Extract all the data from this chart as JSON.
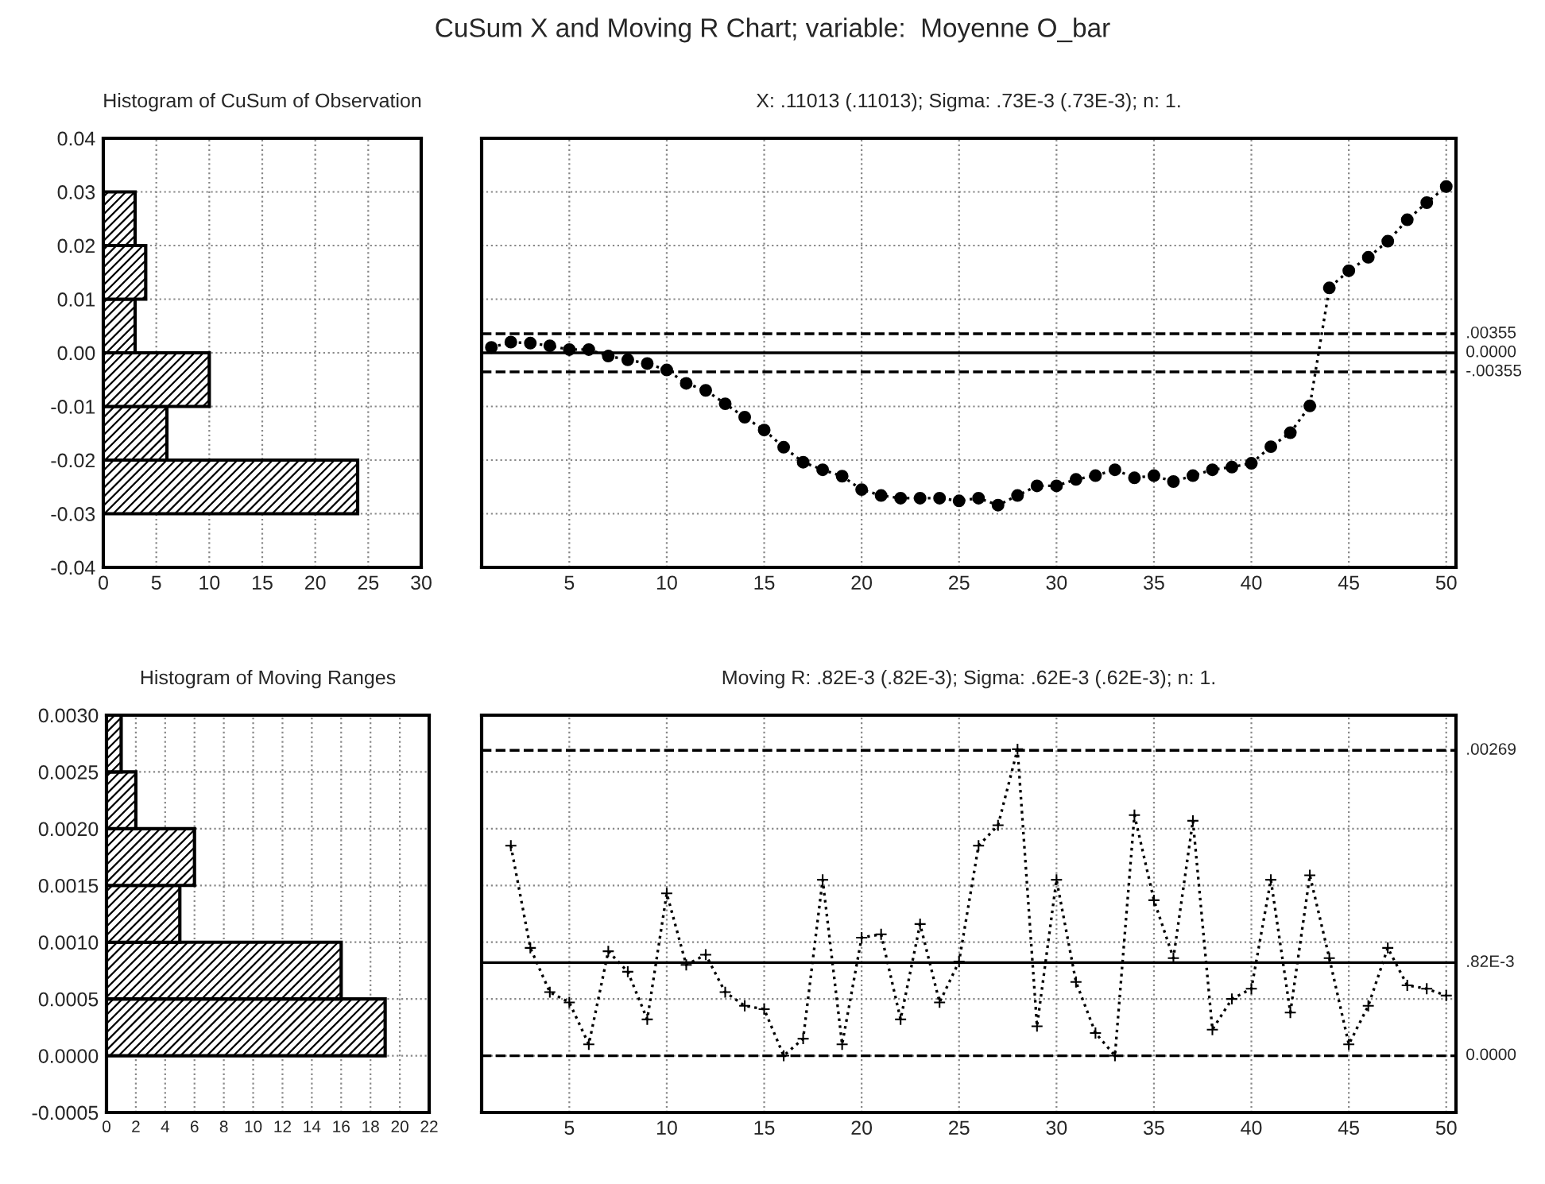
{
  "chart_data": [
    {
      "type": "histogram",
      "orientation": "horizontal",
      "title": "Histogram of CuSum of Observation",
      "annotations": [
        "CuSum X and Moving R Chart; variable:  Moyenne O_bar"
      ],
      "bins": [
        -0.03,
        -0.02,
        -0.01,
        0.0,
        0.01,
        0.02,
        0.03
      ],
      "values": [
        24,
        6,
        10,
        3,
        4,
        3
      ],
      "color": "#000000",
      "xlim": [
        0,
        30
      ],
      "xticks": [
        0,
        5,
        10,
        15,
        20,
        25,
        30
      ],
      "ylim": [
        -0.04,
        0.04
      ],
      "yticks": [
        {
          "value": -0.04,
          "label": "-0.04"
        },
        {
          "value": -0.03,
          "label": "-0.03"
        },
        {
          "value": -0.02,
          "label": "-0.02"
        },
        {
          "value": -0.01,
          "label": "-0.01"
        },
        {
          "value": 0.0,
          "label": "0.00"
        },
        {
          "value": 0.01,
          "label": "0.01"
        },
        {
          "value": 0.02,
          "label": "0.02"
        },
        {
          "value": 0.03,
          "label": "0.03"
        },
        {
          "value": 0.04,
          "label": "0.04"
        }
      ],
      "grid": true
    },
    {
      "type": "line",
      "title": "X: .11013 (.11013); Sigma: .73E-3 (.73E-3); n: 1.",
      "marker": "circle",
      "line_style": "dotted",
      "x": [
        1,
        2,
        3,
        4,
        5,
        6,
        7,
        8,
        9,
        10,
        11,
        12,
        13,
        14,
        15,
        16,
        17,
        18,
        19,
        20,
        21,
        22,
        23,
        24,
        25,
        26,
        27,
        28,
        29,
        30,
        31,
        32,
        33,
        34,
        35,
        36,
        37,
        38,
        39,
        40,
        41,
        42,
        43,
        44,
        45,
        46,
        47,
        48,
        49,
        50
      ],
      "series": [
        {
          "color": "#000000",
          "values": [
            0.001,
            0.002,
            0.0018,
            0.0013,
            0.0006,
            0.0006,
            -0.0006,
            -0.0013,
            -0.002,
            -0.0032,
            -0.0057,
            -0.007,
            -0.0095,
            -0.012,
            -0.0144,
            -0.0176,
            -0.0204,
            -0.0218,
            -0.023,
            -0.0255,
            -0.0266,
            -0.0271,
            -0.0271,
            -0.0271,
            -0.0276,
            -0.0271,
            -0.0284,
            -0.0266,
            -0.0248,
            -0.0248,
            -0.0236,
            -0.0229,
            -0.0218,
            -0.0233,
            -0.0229,
            -0.024,
            -0.0229,
            -0.0218,
            -0.0213,
            -0.0206,
            -0.0175,
            -0.0149,
            -0.0099,
            0.0121,
            0.0153,
            0.0178,
            0.0208,
            0.0248,
            0.028,
            0.031
          ]
        }
      ],
      "xlim": [
        0.5,
        50.5
      ],
      "xticks": [
        5,
        10,
        15,
        20,
        25,
        30,
        35,
        40,
        45,
        50
      ],
      "ylim": [
        -0.04,
        0.04
      ],
      "yticks": [
        {
          "value": -0.04,
          "label": null
        },
        {
          "value": -0.03,
          "label": null
        },
        {
          "value": -0.02,
          "label": null
        },
        {
          "value": -0.01,
          "label": null
        },
        {
          "value": 0.0,
          "label": null
        },
        {
          "value": 0.01,
          "label": null
        },
        {
          "value": 0.02,
          "label": null
        },
        {
          "value": 0.03,
          "label": null
        },
        {
          "value": 0.04,
          "label": null
        }
      ],
      "tick_labels": "x",
      "grid": true,
      "ref_lines": [
        {
          "axis": "y",
          "value": 0.00355,
          "label": ".00355",
          "line_style": "dashed"
        },
        {
          "axis": "y",
          "value": 0.0,
          "label": "0.0000",
          "line_style": "solid"
        },
        {
          "axis": "y",
          "value": -0.00355,
          "label": "-.00355",
          "line_style": "dashed"
        }
      ]
    },
    {
      "type": "histogram",
      "orientation": "horizontal",
      "title": "Histogram of Moving Ranges",
      "bins": [
        0.0,
        0.0005,
        0.001,
        0.0015,
        0.002,
        0.0025,
        0.003
      ],
      "values": [
        19,
        16,
        5,
        6,
        2,
        1
      ],
      "color": "#000000",
      "xlim": [
        0,
        22
      ],
      "xticks": [
        0,
        2,
        4,
        6,
        8,
        10,
        12,
        14,
        16,
        18,
        20,
        22
      ],
      "ylim": [
        -0.0005,
        0.003
      ],
      "yticks": [
        {
          "value": -0.0005,
          "label": "-0.0005"
        },
        {
          "value": 0.0,
          "label": "0.0000"
        },
        {
          "value": 0.0005,
          "label": "0.0005"
        },
        {
          "value": 0.001,
          "label": "0.0010"
        },
        {
          "value": 0.0015,
          "label": "0.0015"
        },
        {
          "value": 0.002,
          "label": "0.0020"
        },
        {
          "value": 0.0025,
          "label": "0.0025"
        },
        {
          "value": 0.003,
          "label": "0.0030"
        }
      ],
      "grid": true
    },
    {
      "type": "line",
      "title": "Moving R: .82E-3 (.82E-3); Sigma: .62E-3 (.62E-3); n: 1.",
      "marker": "cross",
      "line_style": "dotted",
      "series": [
        {
          "color": "#000000",
          "x": [
            2,
            3,
            4,
            5,
            6,
            7,
            8,
            9,
            10,
            11,
            12,
            13,
            14,
            15,
            16,
            17,
            18,
            19,
            20,
            21,
            22,
            23,
            24,
            25,
            26,
            27,
            28,
            29,
            30,
            31,
            32,
            33,
            34,
            35,
            36,
            37,
            38,
            39,
            40,
            41,
            42,
            43,
            44,
            45,
            46,
            47,
            48,
            49,
            50
          ],
          "values": [
            0.00185,
            0.00095,
            0.00056,
            0.00047,
            0.0001,
            0.00092,
            0.00074,
            0.00032,
            0.00143,
            0.0008,
            0.00089,
            0.00056,
            0.00044,
            0.00041,
            0.0,
            0.00015,
            0.00155,
            0.0001,
            0.00104,
            0.00107,
            0.00032,
            0.00116,
            0.00047,
            0.00083,
            0.00185,
            0.00203,
            0.0027,
            0.00026,
            0.00155,
            0.00065,
            0.0002,
            0.0,
            0.00212,
            0.00137,
            0.00086,
            0.00207,
            0.00023,
            0.0005,
            0.00059,
            0.00155,
            0.00038,
            0.00159,
            0.00086,
            0.0001,
            0.00044,
            0.00095,
            0.00062,
            0.00059,
            0.00053
          ]
        }
      ],
      "xlim": [
        0.5,
        50.5
      ],
      "xticks": [
        5,
        10,
        15,
        20,
        25,
        30,
        35,
        40,
        45,
        50
      ],
      "ylim": [
        -0.0005,
        0.003
      ],
      "yticks": [
        {
          "value": -0.0005,
          "label": null
        },
        {
          "value": 0.0,
          "label": null
        },
        {
          "value": 0.0005,
          "label": null
        },
        {
          "value": 0.001,
          "label": null
        },
        {
          "value": 0.0015,
          "label": null
        },
        {
          "value": 0.002,
          "label": null
        },
        {
          "value": 0.0025,
          "label": null
        },
        {
          "value": 0.003,
          "label": null
        }
      ],
      "tick_labels": "x",
      "grid": true,
      "ref_lines": [
        {
          "axis": "y",
          "value": 0.00269,
          "label": ".00269",
          "line_style": "dashed"
        },
        {
          "axis": "y",
          "value": 0.00082,
          "label": ".82E-3",
          "line_style": "solid"
        },
        {
          "axis": "y",
          "value": 0.0,
          "label": "0.0000",
          "line_style": "dashed"
        }
      ]
    }
  ]
}
